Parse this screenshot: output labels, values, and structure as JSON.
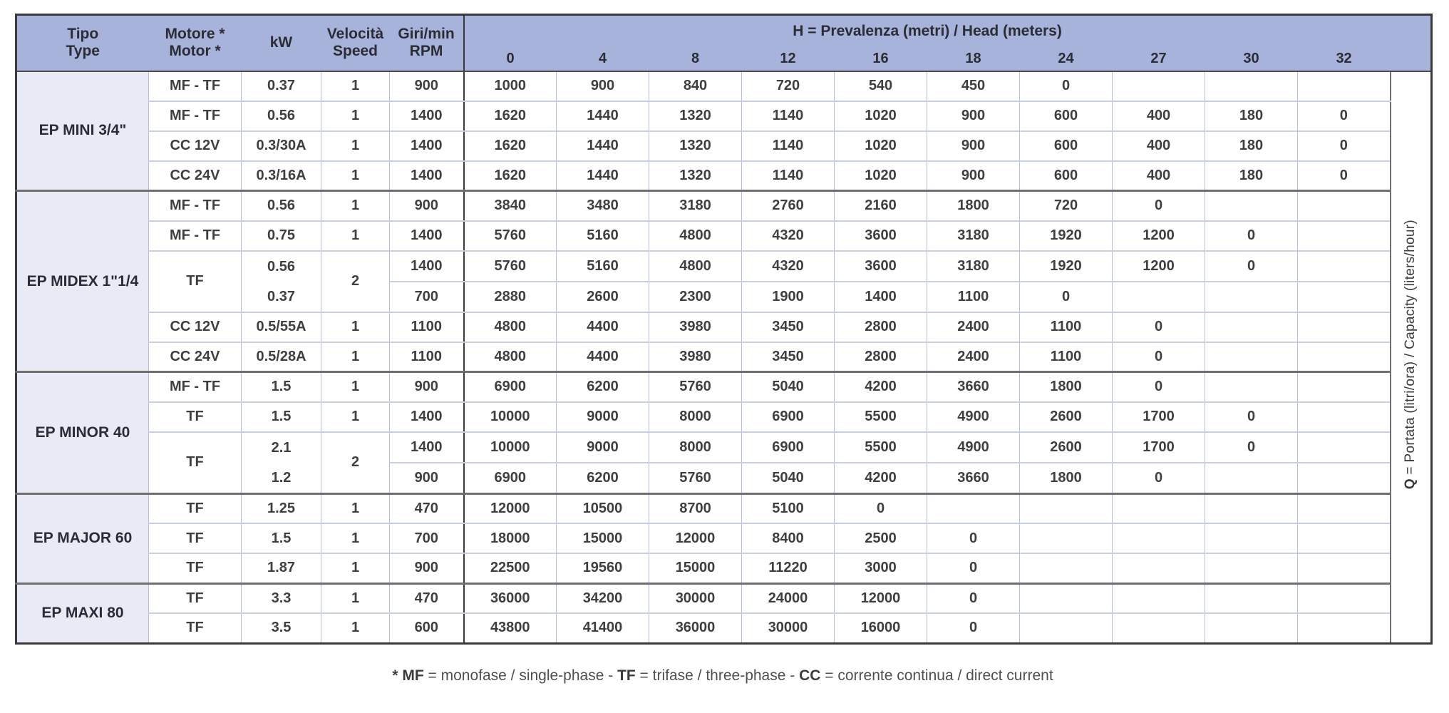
{
  "colors": {
    "header-bg": "#a7b3da",
    "tipo-bg": "#e8eaf6",
    "grid-col": "#b6bedb",
    "grid-light": "#c9cfe2",
    "sep": "#6f6f6f",
    "frame": "#3a3a3a",
    "text": "#3f3f42"
  },
  "table": {
    "header": {
      "tipo_l1": "Tipo",
      "tipo_l2": "Type",
      "motore_l1": "Motore *",
      "motore_l2": "Motor *",
      "kw": "kW",
      "velocita_l1": "Velocità",
      "velocita_l2": "Speed",
      "giri_l1": "Giri/min",
      "giri_l2": "RPM",
      "h_label_bold": "H",
      "h_label_rest": " = Prevalenza (metri) / Head (meters)",
      "h_ticks": [
        "0",
        "4",
        "8",
        "12",
        "16",
        "18",
        "24",
        "27",
        "30",
        "32"
      ]
    },
    "groups": [
      {
        "name": "EP MINI 3/4\"",
        "rows": [
          {
            "motor": "MF - TF",
            "kw": "0.37",
            "speed": "1",
            "rpm": "900",
            "q": [
              "1000",
              "900",
              "840",
              "720",
              "540",
              "450",
              "0",
              "",
              "",
              ""
            ]
          },
          {
            "motor": "MF - TF",
            "kw": "0.56",
            "speed": "1",
            "rpm": "1400",
            "q": [
              "1620",
              "1440",
              "1320",
              "1140",
              "1020",
              "900",
              "600",
              "400",
              "180",
              "0"
            ]
          },
          {
            "motor": "CC 12V",
            "kw": "0.3/30A",
            "speed": "1",
            "rpm": "1400",
            "q": [
              "1620",
              "1440",
              "1320",
              "1140",
              "1020",
              "900",
              "600",
              "400",
              "180",
              "0"
            ]
          },
          {
            "motor": "CC 24V",
            "kw": "0.3/16A",
            "speed": "1",
            "rpm": "1400",
            "q": [
              "1620",
              "1440",
              "1320",
              "1140",
              "1020",
              "900",
              "600",
              "400",
              "180",
              "0"
            ]
          }
        ]
      },
      {
        "name": "EP MIDEX 1\"1/4",
        "rows": [
          {
            "motor": "MF - TF",
            "kw": "0.56",
            "speed": "1",
            "rpm": "900",
            "q": [
              "3840",
              "3480",
              "3180",
              "2760",
              "2160",
              "1800",
              "720",
              "0",
              "",
              ""
            ]
          },
          {
            "motor": "MF - TF",
            "kw": "0.75",
            "speed": "1",
            "rpm": "1400",
            "q": [
              "5760",
              "5160",
              "4800",
              "4320",
              "3600",
              "3180",
              "1920",
              "1200",
              "0",
              ""
            ]
          },
          {
            "motor": "TF",
            "kw": [
              "0.56",
              "0.37"
            ],
            "speed": "2",
            "subrows": [
              {
                "rpm": "1400",
                "q": [
                  "5760",
                  "5160",
                  "4800",
                  "4320",
                  "3600",
                  "3180",
                  "1920",
                  "1200",
                  "0",
                  ""
                ]
              },
              {
                "rpm": "700",
                "q": [
                  "2880",
                  "2600",
                  "2300",
                  "1900",
                  "1400",
                  "1100",
                  "0",
                  "",
                  "",
                  ""
                ]
              }
            ]
          },
          {
            "motor": "CC 12V",
            "kw": "0.5/55A",
            "speed": "1",
            "rpm": "1100",
            "q": [
              "4800",
              "4400",
              "3980",
              "3450",
              "2800",
              "2400",
              "1100",
              "0",
              "",
              ""
            ]
          },
          {
            "motor": "CC 24V",
            "kw": "0.5/28A",
            "speed": "1",
            "rpm": "1100",
            "q": [
              "4800",
              "4400",
              "3980",
              "3450",
              "2800",
              "2400",
              "1100",
              "0",
              "",
              ""
            ]
          }
        ]
      },
      {
        "name": "EP MINOR 40",
        "rows": [
          {
            "motor": "MF - TF",
            "kw": "1.5",
            "speed": "1",
            "rpm": "900",
            "q": [
              "6900",
              "6200",
              "5760",
              "5040",
              "4200",
              "3660",
              "1800",
              "0",
              "",
              ""
            ]
          },
          {
            "motor": "TF",
            "kw": "1.5",
            "speed": "1",
            "rpm": "1400",
            "q": [
              "10000",
              "9000",
              "8000",
              "6900",
              "5500",
              "4900",
              "2600",
              "1700",
              "0",
              ""
            ]
          },
          {
            "motor": "TF",
            "kw": [
              "2.1",
              "1.2"
            ],
            "speed": "2",
            "subrows": [
              {
                "rpm": "1400",
                "q": [
                  "10000",
                  "9000",
                  "8000",
                  "6900",
                  "5500",
                  "4900",
                  "2600",
                  "1700",
                  "0",
                  ""
                ]
              },
              {
                "rpm": "900",
                "q": [
                  "6900",
                  "6200",
                  "5760",
                  "5040",
                  "4200",
                  "3660",
                  "1800",
                  "0",
                  "",
                  ""
                ]
              }
            ]
          }
        ]
      },
      {
        "name": "EP MAJOR 60",
        "rows": [
          {
            "motor": "TF",
            "kw": "1.25",
            "speed": "1",
            "rpm": "470",
            "q": [
              "12000",
              "10500",
              "8700",
              "5100",
              "0",
              "",
              "",
              "",
              "",
              ""
            ]
          },
          {
            "motor": "TF",
            "kw": "1.5",
            "speed": "1",
            "rpm": "700",
            "q": [
              "18000",
              "15000",
              "12000",
              "8400",
              "2500",
              "0",
              "",
              "",
              "",
              ""
            ]
          },
          {
            "motor": "TF",
            "kw": "1.87",
            "speed": "1",
            "rpm": "900",
            "q": [
              "22500",
              "19560",
              "15000",
              "11220",
              "3000",
              "0",
              "",
              "",
              "",
              ""
            ]
          }
        ]
      },
      {
        "name": "EP MAXI 80",
        "rows": [
          {
            "motor": "TF",
            "kw": "3.3",
            "speed": "1",
            "rpm": "470",
            "q": [
              "36000",
              "34200",
              "30000",
              "24000",
              "12000",
              "0",
              "",
              "",
              "",
              ""
            ]
          },
          {
            "motor": "TF",
            "kw": "3.5",
            "speed": "1",
            "rpm": "600",
            "q": [
              "43800",
              "41400",
              "36000",
              "30000",
              "16000",
              "0",
              "",
              "",
              "",
              ""
            ]
          }
        ]
      }
    ]
  },
  "q_axis": {
    "bold": "Q",
    "rest": " = Portata (litri/ora) / Capacity (liters/hour)"
  },
  "footnote": {
    "p0": "* MF",
    "p1": " = monofase / single-phase - ",
    "p2": "TF",
    "p3": " = trifase / three-phase - ",
    "p4": "CC",
    "p5": " = corrente continua / direct current"
  }
}
